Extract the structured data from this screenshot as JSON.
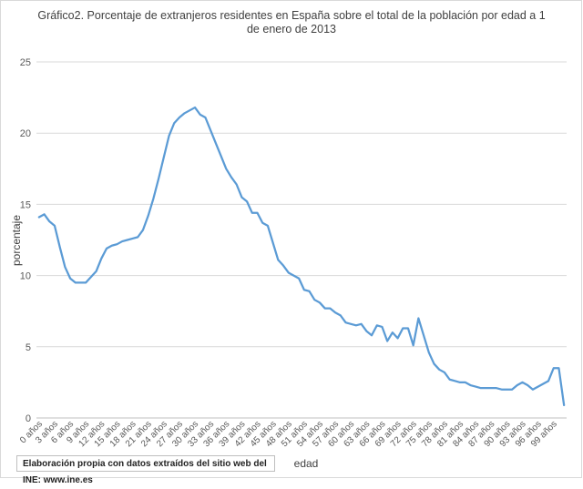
{
  "chart_data": {
    "type": "line",
    "title": "Gráfico2. Porcentaje de extranjeros residentes en España sobre el total de la población por edad a 1 de enero de 2013",
    "xlabel": "edad",
    "ylabel": "porcentaje",
    "ylim": [
      0,
      25
    ],
    "yticks": [
      "0",
      "5",
      "10",
      "15",
      "20",
      "25"
    ],
    "grid": true,
    "legend": "none",
    "line_color": "#5b9bd5",
    "x_tick_labels": [
      "0 años",
      "3 años",
      "6 años",
      "9 años",
      "12 años",
      "15 años",
      "18 años",
      "21 años",
      "24 años",
      "27 años",
      "30 años",
      "33 años",
      "36 años",
      "39 años",
      "42 años",
      "45 años",
      "48 años",
      "51 años",
      "54 años",
      "57 años",
      "60 años",
      "63 años",
      "66 años",
      "69 años",
      "72 años",
      "75 años",
      "78 años",
      "81 años",
      "84 años",
      "87 años",
      "90 años",
      "93 años",
      "96 años",
      "99 años"
    ],
    "series": [
      {
        "values": [
          14.1,
          14.3,
          13.8,
          13.5,
          12.0,
          10.6,
          9.8,
          9.5,
          9.5,
          9.5,
          9.9,
          10.3,
          11.2,
          11.9,
          12.1,
          12.2,
          12.4,
          12.5,
          12.6,
          12.7,
          13.2,
          14.2,
          15.4,
          16.8,
          18.3,
          19.8,
          20.7,
          21.1,
          21.4,
          21.6,
          21.8,
          21.3,
          21.1,
          20.2,
          19.3,
          18.4,
          17.5,
          16.9,
          16.4,
          15.5,
          15.2,
          14.4,
          14.4,
          13.7,
          13.5,
          12.3,
          11.1,
          10.7,
          10.2,
          10.0,
          9.8,
          9.0,
          8.9,
          8.3,
          8.1,
          7.7,
          7.7,
          7.4,
          7.2,
          6.7,
          6.6,
          6.5,
          6.6,
          6.1,
          5.8,
          6.5,
          6.4,
          5.4,
          6.0,
          5.6,
          6.3,
          6.3,
          5.1,
          7.0,
          5.8,
          4.6,
          3.8,
          3.4,
          3.2,
          2.7,
          2.6,
          2.5,
          2.5,
          2.3,
          2.2,
          2.1,
          2.1,
          2.1,
          2.1,
          2.0,
          2.0,
          2.0,
          2.3,
          2.5,
          2.3,
          2.0,
          2.2,
          2.4,
          2.6,
          3.5,
          3.5,
          0.9
        ]
      }
    ]
  },
  "footer": {
    "source": "Elaboración propia con datos extraídos del sitio web del INE: www.ine.es"
  }
}
